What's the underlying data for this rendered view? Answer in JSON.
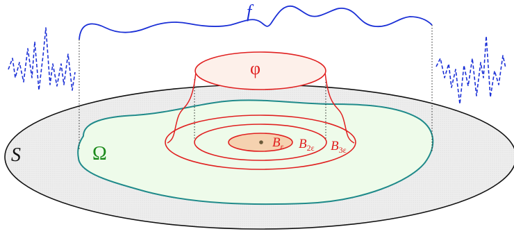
{
  "labels": {
    "f": "f",
    "S": "S",
    "Omega": "Ω",
    "phi": "φ",
    "B1": {
      "base": "B",
      "sub": "ε"
    },
    "B2": {
      "base": "B",
      "sub": "2ε"
    },
    "B3": {
      "base": "B",
      "sub": "3ε"
    }
  },
  "colors": {
    "function_curve": "#1a2fd6",
    "test_function": "#e02020",
    "domain_omega": "#1f8a8a",
    "omega_label": "#1a8a1a",
    "omega_fill": "#eefbea",
    "surface_fill": "#ececec",
    "surface_stroke": "#111111",
    "phi_fill": "#fdf0ea",
    "inner_ball_fill": "#f5d2b0",
    "center_point": "#6b5a3a"
  }
}
